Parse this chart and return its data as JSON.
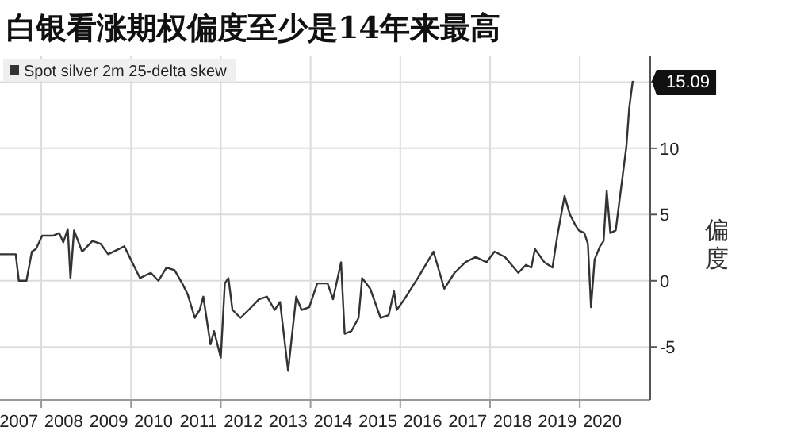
{
  "chart_data": {
    "type": "line",
    "title": "白银看涨期权偏度至少是14年来最高",
    "ylabel": "偏度",
    "series": [
      {
        "name": "Spot silver 2m 25-delta skew",
        "color": "#333333",
        "x": [
          2007.08,
          2007.43,
          2007.5,
          2007.67,
          2007.79,
          2007.88,
          2008.02,
          2008.26,
          2008.4,
          2008.49,
          2008.59,
          2008.65,
          2008.73,
          2008.91,
          2009.14,
          2009.32,
          2009.49,
          2009.85,
          2010.2,
          2010.44,
          2010.61,
          2010.79,
          2010.97,
          2011.14,
          2011.26,
          2011.42,
          2011.53,
          2011.61,
          2011.77,
          2011.85,
          2012.0,
          2012.09,
          2012.17,
          2012.26,
          2012.44,
          2012.62,
          2012.85,
          2013.03,
          2013.2,
          2013.32,
          2013.5,
          2013.68,
          2013.8,
          2013.97,
          2014.15,
          2014.38,
          2014.5,
          2014.68,
          2014.76,
          2014.91,
          2015.07,
          2015.15,
          2015.33,
          2015.56,
          2015.74,
          2015.86,
          2015.92,
          2016.09,
          2016.39,
          2016.74,
          2016.98,
          2017.21,
          2017.45,
          2017.68,
          2017.92,
          2018.1,
          2018.33,
          2018.63,
          2018.8,
          2018.92,
          2019.0,
          2019.21,
          2019.39,
          2019.5,
          2019.66,
          2019.78,
          2019.9,
          2019.98,
          2020.1,
          2020.18,
          2020.25,
          2020.33,
          2020.45,
          2020.53,
          2020.6,
          2020.68,
          2020.8,
          2020.95,
          2021.04,
          2021.1,
          2021.18
        ],
        "values": [
          2.0,
          2.0,
          0,
          0,
          2.2,
          2.4,
          3.4,
          3.4,
          3.6,
          2.9,
          3.9,
          0.2,
          3.8,
          2.2,
          3.0,
          2.8,
          2.0,
          2.6,
          0.2,
          0.6,
          0,
          1.0,
          0.8,
          -0.2,
          -1.0,
          -2.8,
          -2.2,
          -1.2,
          -4.8,
          -3.8,
          -5.8,
          -0.2,
          0.2,
          -2.2,
          -2.8,
          -2.2,
          -1.4,
          -1.2,
          -2.2,
          -1.6,
          -6.8,
          -1.2,
          -2.2,
          -2.0,
          -0.2,
          -0.2,
          -1.4,
          1.4,
          -4.0,
          -3.8,
          -2.8,
          0.2,
          -0.6,
          -2.8,
          -2.6,
          -0.8,
          -2.2,
          -1.4,
          0.2,
          2.2,
          -0.6,
          0.6,
          1.4,
          1.8,
          1.4,
          2.2,
          1.8,
          0.6,
          1.2,
          1.0,
          2.4,
          1.4,
          1.0,
          3.4,
          6.4,
          5.0,
          4.2,
          3.8,
          3.6,
          2.8,
          -2.0,
          1.6,
          2.6,
          3.0,
          6.8,
          3.6,
          3.8,
          7.8,
          10.2,
          13.0,
          15.09
        ]
      }
    ],
    "xlim": [
      2007.08,
      2021.57
    ],
    "xticks": [
      {
        "value": 2008,
        "label": null
      },
      {
        "value": 2010,
        "label": null
      },
      {
        "value": 2012,
        "label": null
      },
      {
        "value": 2014,
        "label": null
      },
      {
        "value": 2016,
        "label": null
      },
      {
        "value": 2018,
        "label": null
      },
      {
        "value": 2020,
        "label": null
      },
      {
        "value": 2007.5,
        "label": "2007"
      },
      {
        "value": 2008.5,
        "label": "2008"
      },
      {
        "value": 2009.5,
        "label": "2009"
      },
      {
        "value": 2010.5,
        "label": "2010"
      },
      {
        "value": 2011.5,
        "label": "2011"
      },
      {
        "value": 2012.5,
        "label": "2012"
      },
      {
        "value": 2013.5,
        "label": "2013"
      },
      {
        "value": 2014.5,
        "label": "2014"
      },
      {
        "value": 2015.5,
        "label": "2015"
      },
      {
        "value": 2016.5,
        "label": "2016"
      },
      {
        "value": 2017.5,
        "label": "2017"
      },
      {
        "value": 2018.5,
        "label": "2018"
      },
      {
        "value": 2019.5,
        "label": "2019"
      },
      {
        "value": 2020.5,
        "label": "2020"
      }
    ],
    "ylim": [
      -9,
      17
    ],
    "yticks": [
      -5,
      0,
      5,
      10,
      {
        "value": 15,
        "label": null
      }
    ],
    "annotations": [
      "15.09"
    ],
    "grid": true,
    "legend": "top left",
    "marker": "none",
    "line_style": "solid"
  }
}
